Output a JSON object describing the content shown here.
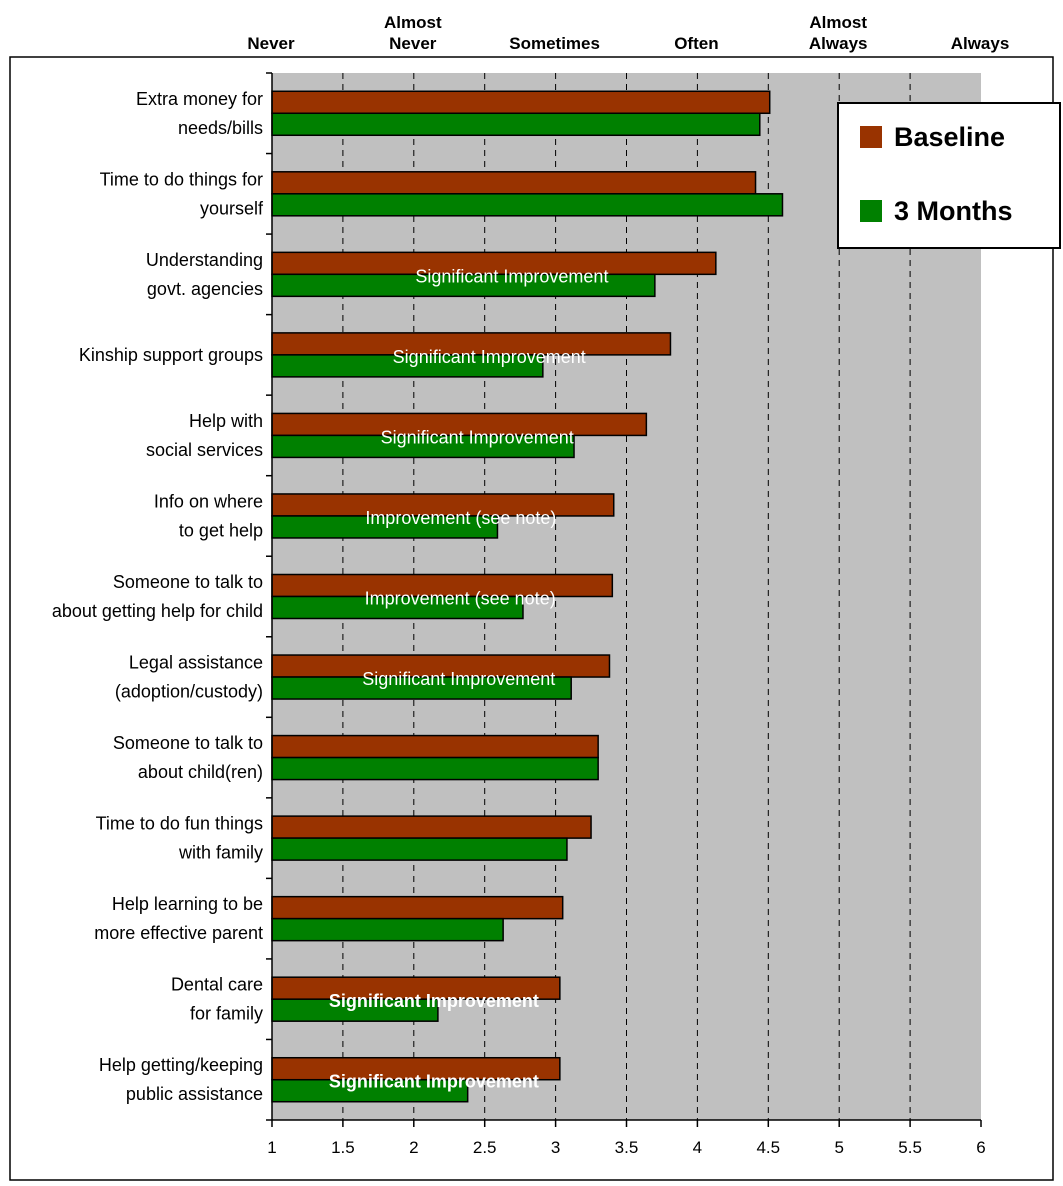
{
  "chart_data": {
    "type": "bar",
    "orientation": "horizontal",
    "scale_labels": [
      {
        "text": [
          "Never"
        ],
        "value": 1.0
      },
      {
        "text": [
          "Almost",
          "Never"
        ],
        "value": 2.0
      },
      {
        "text": [
          "Sometimes"
        ],
        "value": 3.0
      },
      {
        "text": [
          "Often"
        ],
        "value": 4.0
      },
      {
        "text": [
          "Almost",
          "Always"
        ],
        "value": 5.0
      },
      {
        "text": [
          "Always"
        ],
        "value": 6.0
      }
    ],
    "categories": [
      [
        "Extra money for",
        "needs/bills"
      ],
      [
        "Time to do things for",
        "yourself"
      ],
      [
        "Understanding",
        "govt. agencies"
      ],
      [
        "Kinship support groups"
      ],
      [
        "Help with",
        "social services"
      ],
      [
        "Info on where",
        "to get help"
      ],
      [
        "Someone to talk to",
        "about getting help for child"
      ],
      [
        "Legal assistance",
        "(adoption/custody)"
      ],
      [
        "Someone to talk to",
        "about child(ren)"
      ],
      [
        "Time to do fun things",
        "with family"
      ],
      [
        "Help learning to be",
        "more effective parent"
      ],
      [
        "Dental care",
        "for family"
      ],
      [
        "Help getting/keeping",
        "public assistance"
      ]
    ],
    "series": [
      {
        "name": "Baseline",
        "color": "#993300",
        "values": [
          4.51,
          4.41,
          4.13,
          3.81,
          3.64,
          3.41,
          3.4,
          3.38,
          3.3,
          3.25,
          3.05,
          3.03,
          3.03
        ]
      },
      {
        "name": "3 Months",
        "color": "#008000",
        "values": [
          4.44,
          4.6,
          3.7,
          2.91,
          3.13,
          2.59,
          2.77,
          3.11,
          3.3,
          3.08,
          2.63,
          2.17,
          2.38
        ]
      }
    ],
    "annotations": [
      {
        "category_index": 2,
        "text": "Significant Improvement",
        "bold": false
      },
      {
        "category_index": 3,
        "text": "Significant Improvement",
        "bold": false
      },
      {
        "category_index": 4,
        "text": "Significant Improvement",
        "bold": false
      },
      {
        "category_index": 5,
        "text": "Improvement (see note)",
        "bold": false
      },
      {
        "category_index": 6,
        "text": "Improvement (see note)",
        "bold": false
      },
      {
        "category_index": 7,
        "text": "Significant Improvement",
        "bold": false
      },
      {
        "category_index": 11,
        "text": "Significant Improvement",
        "bold": true
      },
      {
        "category_index": 12,
        "text": "Significant Improvement",
        "bold": true
      }
    ],
    "xlim": [
      1,
      6
    ],
    "x_ticks": [
      1,
      1.5,
      2,
      2.5,
      3,
      3.5,
      4,
      4.5,
      5,
      5.5,
      6
    ],
    "x_tick_labels": [
      "1",
      "1.5",
      "2",
      "2.5",
      "3",
      "3.5",
      "4",
      "4.5",
      "5",
      "5.5",
      "6"
    ],
    "grid": "dashed vertical",
    "legend_position": "top-right",
    "plot_background": "#c0c0c0"
  }
}
